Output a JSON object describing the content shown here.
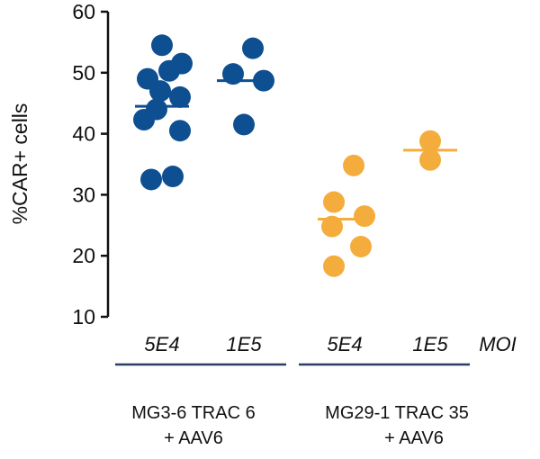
{
  "chart_data": {
    "type": "scatter",
    "ylabel": "%CAR+ cells",
    "ylim": [
      10,
      60
    ],
    "yticks": [
      10,
      20,
      30,
      40,
      50,
      60
    ],
    "x_axis_label": "MOI",
    "categories": [
      "5E4",
      "1E5",
      "5E4",
      "1E5"
    ],
    "groups": [
      {
        "name_line1": "MG3-6 TRAC 6",
        "name_line2": "+ AAV6",
        "color": "#0e4f91",
        "underline_color": "#2b3d63",
        "series": [
          {
            "category": "5E4",
            "mean": 44.5,
            "points": [
              {
                "offset": 0.0,
                "value": 54.5
              },
              {
                "offset": -0.4,
                "value": 49.0
              },
              {
                "offset": 0.2,
                "value": 50.3
              },
              {
                "offset": 0.55,
                "value": 51.5
              },
              {
                "offset": -0.05,
                "value": 47.0
              },
              {
                "offset": 0.5,
                "value": 46.0
              },
              {
                "offset": -0.15,
                "value": 44.0
              },
              {
                "offset": -0.5,
                "value": 42.3
              },
              {
                "offset": 0.5,
                "value": 40.5
              },
              {
                "offset": -0.3,
                "value": 32.5
              },
              {
                "offset": 0.3,
                "value": 33.0
              }
            ]
          },
          {
            "category": "1E5",
            "mean": 48.7,
            "points": [
              {
                "offset": 0.25,
                "value": 54.0
              },
              {
                "offset": -0.3,
                "value": 49.8
              },
              {
                "offset": 0.55,
                "value": 48.7
              },
              {
                "offset": 0.0,
                "value": 41.5
              }
            ]
          }
        ]
      },
      {
        "name_line1": "MG29-1 TRAC 35",
        "name_line2": "+ AAV6",
        "color": "#f4ad3d",
        "underline_color": "#2b3d63",
        "series": [
          {
            "category": "5E4",
            "mean": 26.0,
            "points": [
              {
                "offset": 0.25,
                "value": 34.8
              },
              {
                "offset": -0.3,
                "value": 28.8
              },
              {
                "offset": 0.55,
                "value": 26.5
              },
              {
                "offset": -0.35,
                "value": 24.8
              },
              {
                "offset": 0.45,
                "value": 21.5
              },
              {
                "offset": -0.3,
                "value": 18.3
              }
            ]
          },
          {
            "category": "1E5",
            "mean": 37.3,
            "points": [
              {
                "offset": 0.0,
                "value": 38.8
              },
              {
                "offset": 0.0,
                "value": 35.7
              }
            ]
          }
        ]
      }
    ]
  }
}
